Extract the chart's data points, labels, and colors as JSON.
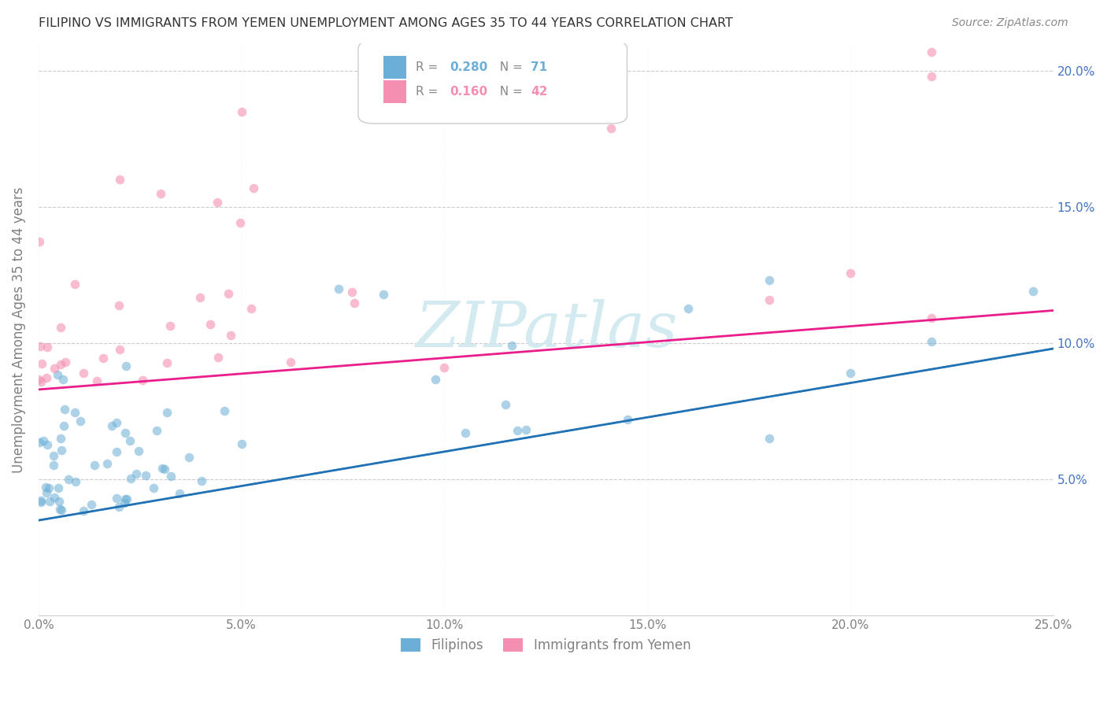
{
  "title": "FILIPINO VS IMMIGRANTS FROM YEMEN UNEMPLOYMENT AMONG AGES 35 TO 44 YEARS CORRELATION CHART",
  "source": "Source: ZipAtlas.com",
  "ylabel": "Unemployment Among Ages 35 to 44 years",
  "xlim": [
    0.0,
    0.25
  ],
  "ylim": [
    0.0,
    0.21
  ],
  "xticks": [
    0.0,
    0.05,
    0.1,
    0.15,
    0.2,
    0.25
  ],
  "yticks": [
    0.05,
    0.1,
    0.15,
    0.2
  ],
  "xticklabels": [
    "0.0%",
    "5.0%",
    "10.0%",
    "15.0%",
    "20.0%",
    "25.0%"
  ],
  "yticklabels_right": [
    "5.0%",
    "10.0%",
    "15.0%",
    "20.0%"
  ],
  "filipinos_color": "#6baed6",
  "yemen_color": "#f48fb1",
  "filipinos_line_color": "#2171b5",
  "yemen_line_color": "#e91e8c",
  "fil_line_start": 0.035,
  "fil_line_end": 0.098,
  "yem_line_start": 0.083,
  "yem_line_end": 0.112,
  "filipinos_R": "0.280",
  "filipinos_N": "71",
  "yemen_R": "0.160",
  "yemen_N": "42"
}
